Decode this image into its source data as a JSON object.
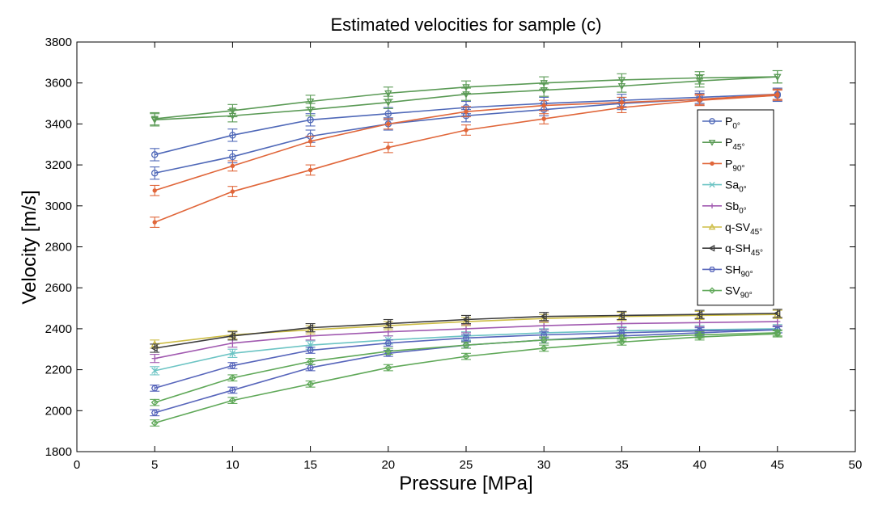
{
  "chart_data": {
    "type": "line",
    "title": "Estimated velocities for sample (c)",
    "xlabel": "Pressure [MPa]",
    "ylabel": "Velocity [m/s]",
    "xlim": [
      0,
      50
    ],
    "ylim": [
      1800,
      3800
    ],
    "xticks": [
      "0",
      "5",
      "10",
      "15",
      "20",
      "25",
      "30",
      "35",
      "40",
      "45",
      "50"
    ],
    "yticks": [
      "1800",
      "2000",
      "2200",
      "2400",
      "2600",
      "2800",
      "3000",
      "3200",
      "3400",
      "3600",
      "3800"
    ],
    "grid": false,
    "legend_position": "right",
    "x": [
      5,
      10,
      15,
      20,
      25,
      30,
      35,
      40,
      45
    ],
    "series": [
      {
        "name": "P0°",
        "name_base": "P",
        "name_sub": "0°",
        "color": "#4f68b8",
        "marker": "circle",
        "role": "line",
        "values": [
          3250,
          3345,
          3420,
          3450,
          3480,
          3500,
          3515,
          3530,
          3545
        ],
        "err": 30
      },
      {
        "name": "P0°",
        "name_base": "P",
        "name_sub": "0°",
        "color": "#4f68b8",
        "marker": "circle",
        "role": "band",
        "values": [
          3160,
          3240,
          3340,
          3400,
          3440,
          3470,
          3500,
          3520,
          3540
        ],
        "err": 30
      },
      {
        "name": "P45°",
        "name_base": "P",
        "name_sub": "45°",
        "color": "#5a9a55",
        "marker": "triangle-down",
        "role": "line",
        "values": [
          3425,
          3465,
          3510,
          3550,
          3580,
          3600,
          3615,
          3625,
          3630
        ],
        "err": 30
      },
      {
        "name": "P45°",
        "name_base": "P",
        "name_sub": "45°",
        "color": "#5a9a55",
        "marker": "triangle-down",
        "role": "band",
        "values": [
          3420,
          3440,
          3470,
          3505,
          3545,
          3565,
          3585,
          3610,
          3630
        ],
        "err": 30
      },
      {
        "name": "P90°",
        "name_base": "P",
        "name_sub": "90°",
        "color": "#e0663a",
        "marker": "dot",
        "role": "line",
        "values": [
          3075,
          3195,
          3315,
          3400,
          3460,
          3490,
          3505,
          3520,
          3545
        ],
        "err": 25
      },
      {
        "name": "P90°",
        "name_base": "P",
        "name_sub": "90°",
        "color": "#e0663a",
        "marker": "dot",
        "role": "band",
        "values": [
          2920,
          3070,
          3175,
          3285,
          3370,
          3425,
          3480,
          3515,
          3540
        ],
        "err": 25
      },
      {
        "name": "Sa0°",
        "name_base": "Sa",
        "name_sub": "0°",
        "color": "#6cc4c4",
        "marker": "cross",
        "role": "line",
        "values": [
          2195,
          2280,
          2320,
          2345,
          2365,
          2380,
          2390,
          2395,
          2400
        ],
        "err": 20
      },
      {
        "name": "Sb0°",
        "name_base": "Sb",
        "name_sub": "0°",
        "color": "#a15ab0",
        "marker": "plus",
        "role": "line",
        "values": [
          2255,
          2330,
          2365,
          2385,
          2400,
          2415,
          2425,
          2430,
          2435
        ],
        "err": 20
      },
      {
        "name": "q-SV45°",
        "name_base": "q-SV",
        "name_sub": "45°",
        "color": "#cdbd45",
        "marker": "triangle-up",
        "role": "line",
        "values": [
          2325,
          2370,
          2395,
          2415,
          2435,
          2450,
          2460,
          2465,
          2470
        ],
        "err": 20
      },
      {
        "name": "q-SH45°",
        "name_base": "q-SH",
        "name_sub": "45°",
        "color": "#3c3c3c",
        "marker": "triangle-left",
        "role": "line",
        "values": [
          2305,
          2365,
          2405,
          2425,
          2445,
          2460,
          2465,
          2470,
          2475
        ],
        "err": 20
      },
      {
        "name": "SH90°",
        "name_base": "SH",
        "name_sub": "90°",
        "color": "#5765bb",
        "marker": "hex",
        "role": "line",
        "values": [
          2110,
          2220,
          2295,
          2330,
          2355,
          2370,
          2380,
          2390,
          2395
        ],
        "err": 15
      },
      {
        "name": "SH90°",
        "name_base": "SH",
        "name_sub": "90°",
        "color": "#5765bb",
        "marker": "hex",
        "role": "band",
        "values": [
          1990,
          2100,
          2210,
          2280,
          2320,
          2345,
          2365,
          2380,
          2395
        ],
        "err": 15
      },
      {
        "name": "SV90°",
        "name_base": "SV",
        "name_sub": "90°",
        "color": "#5fa858",
        "marker": "diamond",
        "role": "line",
        "values": [
          2040,
          2160,
          2240,
          2290,
          2320,
          2345,
          2355,
          2370,
          2380
        ],
        "err": 15
      },
      {
        "name": "SV90°",
        "name_base": "SV",
        "name_sub": "90°",
        "color": "#5fa858",
        "marker": "diamond",
        "role": "band",
        "values": [
          1940,
          2050,
          2130,
          2210,
          2265,
          2305,
          2335,
          2360,
          2375
        ],
        "err": 15
      }
    ]
  }
}
